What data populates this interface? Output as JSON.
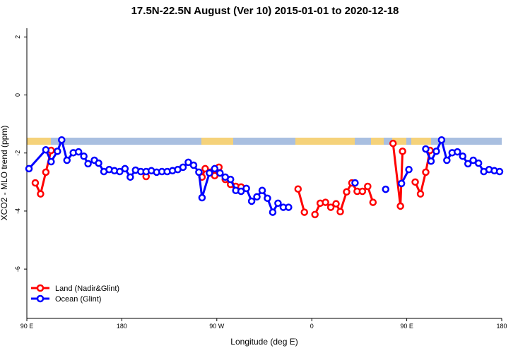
{
  "chart_data": {
    "type": "line",
    "title": "17.5N-22.5N August (Ver 10)   2015-01-01 to 2020-12-18",
    "xlabel": "Longitude (deg E)",
    "ylabel": "XCO2 - MLO trend (ppm)",
    "xlim": [
      90,
      540
    ],
    "ylim": [
      -7.7,
      2.3
    ],
    "xticks": [
      {
        "value": 90,
        "label": "90 E"
      },
      180,
      {
        "value": 270,
        "label": "90 W"
      },
      {
        "value": 360,
        "label": "0"
      },
      {
        "value": 450,
        "label": "90 E"
      },
      {
        "value": 540,
        "label": "180"
      }
    ],
    "yticks": [
      2,
      0,
      -2,
      -4,
      -6
    ],
    "legend": "bottom-left",
    "series": [
      {
        "name": "Land (Nadir&Glint)",
        "color": "#ff0000",
        "x": [
          98,
          103,
          108,
          113,
          null,
          203,
          null,
          256,
          259,
          264,
          268,
          272,
          278,
          283,
          288,
          293,
          null,
          347,
          353,
          null,
          363,
          368,
          373,
          378,
          383,
          387,
          393,
          398,
          403,
          408,
          413,
          418,
          null,
          437,
          444,
          446,
          null,
          458,
          463,
          468,
          472
        ],
        "values": [
          -3.03,
          -3.41,
          -2.66,
          -1.91,
          null,
          -2.81,
          null,
          -2.83,
          -2.54,
          -2.66,
          -2.78,
          -2.49,
          -2.91,
          -3.08,
          -3.15,
          -3.17,
          null,
          -3.24,
          -4.04,
          null,
          -4.12,
          -3.73,
          -3.7,
          -3.87,
          -3.75,
          -4.02,
          -3.34,
          -3.03,
          -3.32,
          -3.32,
          -3.15,
          -3.7,
          null,
          -1.67,
          -3.83,
          -1.94,
          null,
          -3.0,
          -3.41,
          -2.66,
          -1.91
        ]
      },
      {
        "name": "Ocean (Glint)",
        "color": "#0000ff",
        "x": [
          92,
          108,
          113,
          119,
          123,
          128,
          134,
          139,
          144,
          148,
          154,
          158,
          163,
          168,
          173,
          178,
          183,
          188,
          193,
          198,
          203,
          208,
          213,
          218,
          223,
          228,
          233,
          238,
          243,
          248,
          253,
          256,
          263,
          268,
          273,
          278,
          283,
          288,
          293,
          298,
          303,
          308,
          313,
          318,
          323,
          328,
          333,
          338,
          null,
          401,
          null,
          430,
          null,
          445,
          452,
          null,
          468,
          473,
          478,
          483,
          488,
          493,
          498,
          503,
          508,
          513,
          518,
          523,
          528,
          533,
          538
        ],
        "values": [
          -2.54,
          -1.89,
          -2.3,
          -1.94,
          -1.55,
          -2.25,
          -1.99,
          -1.96,
          -2.11,
          -2.37,
          -2.25,
          -2.35,
          -2.64,
          -2.57,
          -2.61,
          -2.64,
          -2.54,
          -2.83,
          -2.59,
          -2.64,
          -2.64,
          -2.61,
          -2.66,
          -2.64,
          -2.64,
          -2.61,
          -2.57,
          -2.49,
          -2.32,
          -2.42,
          -2.66,
          -3.54,
          -2.69,
          -2.54,
          -2.69,
          -2.83,
          -2.91,
          -3.29,
          -3.32,
          -3.22,
          -3.66,
          -3.51,
          -3.29,
          -3.56,
          -4.04,
          -3.73,
          -3.87,
          -3.87,
          null,
          -3.03,
          null,
          -3.25,
          null,
          -3.05,
          -2.57,
          null,
          -1.86,
          -2.28,
          -1.94,
          -1.55,
          -2.25,
          -1.99,
          -1.96,
          -2.11,
          -2.37,
          -2.25,
          -2.35,
          -2.64,
          -2.57,
          -2.61,
          -2.64
        ]
      }
    ]
  }
}
